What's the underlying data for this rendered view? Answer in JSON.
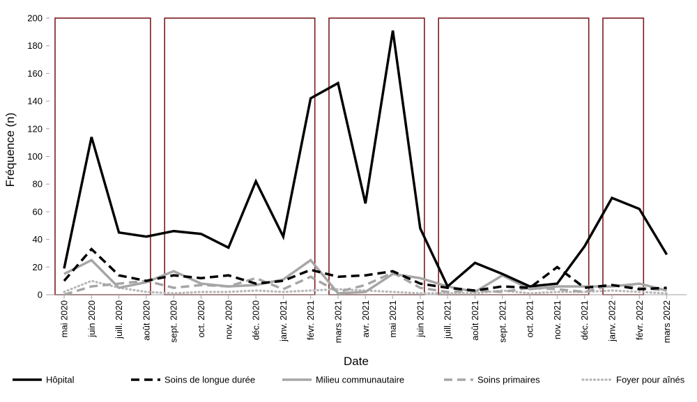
{
  "chart_data": {
    "type": "line",
    "title": "",
    "xlabel": "Date",
    "ylabel": "Fréquence (n)",
    "ylim": [
      0,
      200
    ],
    "yticks": [
      0,
      20,
      40,
      60,
      80,
      100,
      120,
      140,
      160,
      180,
      200
    ],
    "grid": false,
    "legend_position": "bottom",
    "categories": [
      "mai 2020",
      "juin 2020",
      "juill. 2020",
      "août 2020",
      "sept. 2020",
      "oct. 2020",
      "nov. 2020",
      "déc. 2020",
      "janv. 2021",
      "févr. 2021",
      "mars 2021",
      "avr. 2021",
      "mai 2021",
      "juin 2021",
      "juill. 2021",
      "août 2021",
      "sept. 2021",
      "oct. 2021",
      "nov. 2021",
      "déc. 2021",
      "janv. 2022",
      "févr. 2022",
      "mars 2022"
    ],
    "series": [
      {
        "name": "Hôpital",
        "style": "solid",
        "color": "#000000",
        "values": [
          19,
          114,
          45,
          42,
          46,
          44,
          34,
          82,
          42,
          142,
          153,
          66,
          191,
          48,
          6,
          23,
          15,
          6,
          8,
          35,
          70,
          62,
          29
        ]
      },
      {
        "name": "Soins de longue durée",
        "style": "dashed",
        "color": "#000000",
        "values": [
          10,
          33,
          14,
          10,
          14,
          12,
          14,
          8,
          10,
          18,
          13,
          14,
          17,
          8,
          5,
          3,
          6,
          5,
          20,
          5,
          7,
          4,
          5
        ]
      },
      {
        "name": "Milieu communautaire",
        "style": "solid",
        "color": "#a6a6a6",
        "values": [
          15,
          25,
          5,
          9,
          17,
          8,
          6,
          7,
          11,
          25,
          1,
          2,
          15,
          12,
          6,
          2,
          14,
          4,
          6,
          6,
          6,
          8,
          3
        ]
      },
      {
        "name": "Soins primaires",
        "style": "dashed",
        "color": "#a6a6a6",
        "values": [
          0,
          6,
          8,
          10,
          5,
          7,
          6,
          12,
          4,
          13,
          2,
          7,
          16,
          5,
          2,
          3,
          2,
          5,
          4,
          2,
          7,
          5,
          3
        ]
      },
      {
        "name": "Foyer pour aînés",
        "style": "dotted",
        "color": "#b7b7b7",
        "values": [
          2,
          10,
          5,
          2,
          1,
          2,
          2,
          3,
          2,
          3,
          4,
          3,
          2,
          1,
          1,
          1,
          3,
          1,
          2,
          2,
          3,
          2,
          1
        ]
      }
    ],
    "highlight_spans": [
      {
        "from": "mai 2020",
        "to": "août 2020"
      },
      {
        "from": "sept. 2020",
        "to": "févr. 2021"
      },
      {
        "from": "mars 2021",
        "to": "juin 2021"
      },
      {
        "from": "juill. 2021",
        "to": "déc. 2021"
      },
      {
        "from": "janv. 2022",
        "to": "févr. 2022"
      }
    ],
    "highlight_color": "#7b1a1d"
  }
}
